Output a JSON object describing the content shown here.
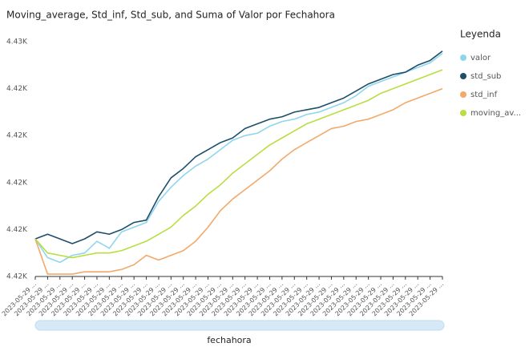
{
  "chart_data": {
    "type": "line",
    "title": "Moving_average, Std_inf, Std_sub, and Suma of Valor por Fechahora",
    "x_label": "fechahora",
    "legend_title": "Leyenda",
    "legend": "right",
    "grid": false,
    "categories": [
      "2023-05-29 ...",
      "2023-05-29 ...",
      "2023-05-29 ...",
      "2023-05-29 ...",
      "2023-05-29 ...",
      "2023-05-29 ...",
      "2023-05-29 ...",
      "2023-05-29 ...",
      "2023-05-29 ...",
      "2023-05-29 ...",
      "2023-05-29 ...",
      "2023-05-29 ...",
      "2023-05-29 ...",
      "2023-05-29 ...",
      "2023-05-29 ...",
      "2023-05-29 ...",
      "2023-05-29 ...",
      "2023-05-29 ...",
      "2023-05-29 ...",
      "2023-05-29 ...",
      "2023-05-29 ...",
      "2023-05-29 ...",
      "2023-05-29 ...",
      "2023-05-29 ...",
      "2023-05-29 ...",
      "2023-05-29 ...",
      "2023-05-29 ...",
      "2023-05-29 ...",
      "2023-05-29 ...",
      "2023-05-29 ...",
      "2023-05-29 ...",
      "2023-05-29 ...",
      "2023-05-29 ...",
      "2023-05-29 ..."
    ],
    "ylim": [
      4416,
      4426
    ],
    "yticks": [
      {
        "value": 4416,
        "label": "4.42K"
      },
      {
        "value": 4418,
        "label": "4.42K"
      },
      {
        "value": 4420,
        "label": "4.42K"
      },
      {
        "value": 4422,
        "label": "4.42K"
      },
      {
        "value": 4424,
        "label": "4.42K"
      },
      {
        "value": 4426,
        "label": "4.43K"
      }
    ],
    "series": [
      {
        "name": "valor",
        "color": "#8fd6ec",
        "values": [
          4417.6,
          4416.8,
          4416.6,
          4416.9,
          4417.0,
          4417.5,
          4417.2,
          4417.9,
          4418.1,
          4418.3,
          4419.2,
          4419.8,
          4420.3,
          4420.7,
          4421.0,
          4421.4,
          4421.8,
          4422.0,
          4422.1,
          4422.4,
          4422.6,
          4422.7,
          4422.9,
          4423.0,
          4423.2,
          4423.4,
          4423.7,
          4424.1,
          4424.3,
          4424.5,
          4424.7,
          4424.9,
          4425.1,
          4425.5
        ]
      },
      {
        "name": "std_sub",
        "color": "#1d4f6a",
        "values": [
          4417.6,
          4417.8,
          4417.6,
          4417.4,
          4417.6,
          4417.9,
          4417.8,
          4418.0,
          4418.3,
          4418.4,
          4419.4,
          4420.2,
          4420.6,
          4421.1,
          4421.4,
          4421.7,
          4421.9,
          4422.3,
          4422.5,
          4422.7,
          4422.8,
          4423.0,
          4423.1,
          4423.2,
          4423.4,
          4423.6,
          4423.9,
          4424.2,
          4424.4,
          4424.6,
          4424.7,
          4425.0,
          4425.2,
          4425.6
        ]
      },
      {
        "name": "std_inf",
        "color": "#f2a96a",
        "values": [
          4417.6,
          4416.1,
          4416.1,
          4416.1,
          4416.2,
          4416.2,
          4416.2,
          4416.3,
          4416.5,
          4416.9,
          4416.7,
          4416.9,
          4417.1,
          4417.5,
          4418.1,
          4418.8,
          4419.3,
          4419.7,
          4420.1,
          4420.5,
          4421.0,
          4421.4,
          4421.7,
          4422.0,
          4422.3,
          4422.4,
          4422.6,
          4422.7,
          4422.9,
          4423.1,
          4423.4,
          4423.6,
          4423.8,
          4424.0
        ]
      },
      {
        "name": "moving_av...",
        "color": "#b8de40",
        "values": [
          4417.6,
          4417.0,
          4416.9,
          4416.8,
          4416.9,
          4417.0,
          4417.0,
          4417.1,
          4417.3,
          4417.5,
          4417.8,
          4418.1,
          4418.6,
          4419.0,
          4419.5,
          4419.9,
          4420.4,
          4420.8,
          4421.2,
          4421.6,
          4421.9,
          4422.2,
          4422.5,
          4422.7,
          4422.9,
          4423.1,
          4423.3,
          4423.5,
          4423.8,
          4424.0,
          4424.2,
          4424.4,
          4424.6,
          4424.8
        ]
      }
    ]
  }
}
